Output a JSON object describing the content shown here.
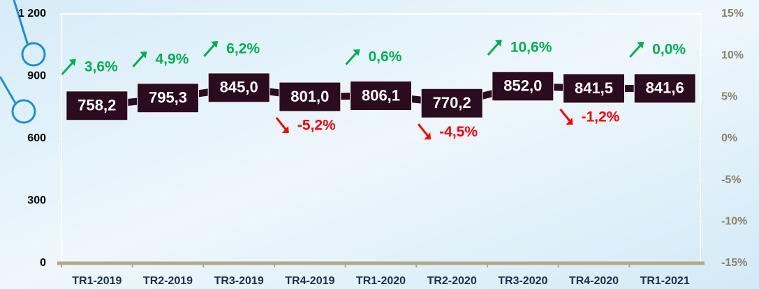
{
  "chart_data": {
    "type": "line",
    "categories": [
      "TR1-2019",
      "TR2-2019",
      "TR3-2019",
      "TR4-2019",
      "TR1-2020",
      "TR2-2020",
      "TR3-2020",
      "TR4-2020",
      "TR1-2021"
    ],
    "series": [
      {
        "color": "#2b0b1f",
        "values": [
          758.2,
          795.3,
          845.0,
          801.0,
          806.1,
          770.2,
          852.0,
          841.5,
          841.6
        ],
        "value_labels": [
          "758,2",
          "795,3",
          "845,0",
          "801,0",
          "806,1",
          "770,2",
          "852,0",
          "841,5",
          "841,6"
        ]
      }
    ],
    "growth": {
      "values": [
        3.6,
        4.9,
        6.2,
        -5.2,
        0.6,
        -4.5,
        10.6,
        -1.2,
        0.0
      ],
      "value_labels": [
        "3,6%",
        "4,9%",
        "6,2%",
        "-5,2%",
        "0,6%",
        "-4,5%",
        "10,6%",
        "-1,2%",
        "0,0%"
      ],
      "up_color": "#00b050",
      "down_color": "#ff0000"
    },
    "ylim": [
      0,
      1200
    ],
    "yticks": [
      0,
      300,
      600,
      900,
      {
        "value": 1200,
        "label": "1 200"
      }
    ],
    "y2lim": [
      -15,
      15
    ],
    "y2ticks": [
      {
        "value": -15,
        "label": "-15%"
      },
      {
        "value": -10,
        "label": "-10%"
      },
      {
        "value": -5,
        "label": "-5%"
      },
      {
        "value": 0,
        "label": "0%"
      },
      {
        "value": 5,
        "label": "5%"
      },
      {
        "value": 10,
        "label": "10%"
      },
      {
        "value": 15,
        "label": "15%"
      }
    ]
  }
}
